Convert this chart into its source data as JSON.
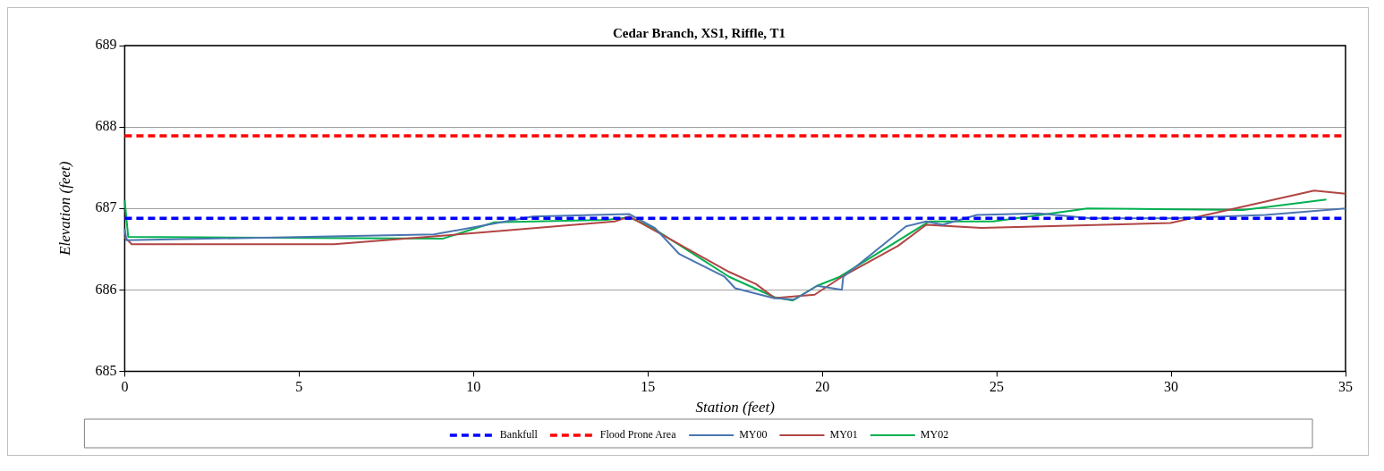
{
  "chart_data": {
    "type": "line",
    "title": "Cedar Branch, XS1, Riffle, T1",
    "xlabel": "Station (feet)",
    "ylabel": "Elevation (feet)",
    "xlim": [
      0,
      35
    ],
    "xticks": [
      0,
      5,
      10,
      15,
      20,
      25,
      30,
      35
    ],
    "ylim": [
      685,
      689
    ],
    "yticks": [
      685,
      686,
      687,
      688,
      689
    ],
    "grid": "y",
    "legend": "bottom",
    "marker": "none",
    "series": [
      {
        "name": "Bankfull",
        "color": "#0000ff",
        "line_style": "dashed",
        "x": [
          0,
          35
        ],
        "values": [
          686.88,
          686.88
        ]
      },
      {
        "name": "Flood Prone Area",
        "color": "#ff0000",
        "line_style": "dashed",
        "x": [
          0,
          35
        ],
        "values": [
          687.89,
          687.89
        ]
      },
      {
        "name": "MY00",
        "color": "#4a76b0",
        "line_style": "solid",
        "x": [
          0,
          0.05,
          8.87,
          11.7,
          14.47,
          15.2,
          15.9,
          17.2,
          17.5,
          18.6,
          19.2,
          19.85,
          20.56,
          20.6,
          22.4,
          22.98,
          23.45,
          24.43,
          26.2,
          27.7,
          30.0,
          32.7,
          35
        ],
        "values": [
          686.75,
          686.61,
          686.68,
          686.9,
          686.93,
          686.76,
          686.44,
          686.16,
          686.02,
          685.9,
          685.88,
          686.05,
          686.0,
          686.16,
          686.78,
          686.84,
          686.8,
          686.92,
          686.94,
          686.88,
          686.88,
          686.92,
          687.0
        ]
      },
      {
        "name": "MY01",
        "color": "#b04644",
        "line_style": "solid",
        "x": [
          0,
          0.2,
          6.0,
          10.1,
          14.05,
          14.47,
          17.33,
          18.1,
          18.63,
          19.78,
          20.56,
          22.17,
          22.98,
          24.56,
          29.98,
          34.1,
          35
        ],
        "values": [
          686.65,
          686.56,
          686.56,
          686.7,
          686.84,
          686.9,
          686.22,
          686.07,
          685.9,
          685.94,
          686.16,
          686.54,
          686.8,
          686.76,
          686.82,
          687.22,
          687.18
        ]
      },
      {
        "name": "MY02",
        "color": "#00b050",
        "line_style": "solid",
        "x": [
          0,
          0.1,
          9.13,
          10.6,
          13.8,
          14.47,
          15.1,
          17.33,
          17.9,
          18.63,
          19.15,
          19.85,
          20.5,
          23.06,
          24.9,
          27.6,
          32.06,
          34.45
        ],
        "values": [
          687.1,
          686.65,
          686.63,
          686.83,
          686.86,
          686.89,
          686.77,
          686.16,
          686.05,
          685.91,
          685.87,
          686.05,
          686.16,
          686.84,
          686.84,
          687.0,
          686.98,
          687.11
        ]
      }
    ]
  }
}
